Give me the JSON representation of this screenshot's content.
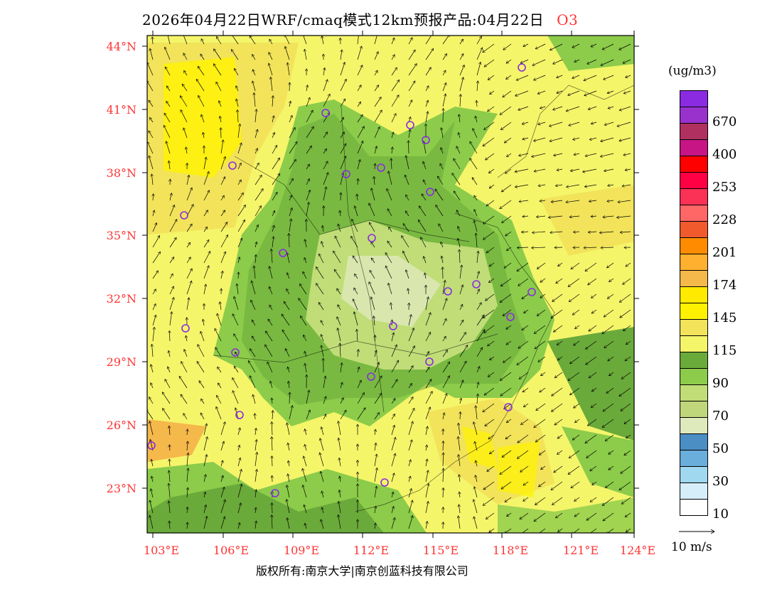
{
  "title": {
    "main": "2026年04月22日WRF/cmaq模式12km预报产品:04月22日",
    "species": "O3"
  },
  "lat_labels": [
    "44°N",
    "41°N",
    "38°N",
    "35°N",
    "32°N",
    "29°N",
    "26°N",
    "23°N"
  ],
  "lon_labels": [
    "103°E",
    "106°E",
    "109°E",
    "112°E",
    "115°E",
    "118°E",
    "121°E",
    "124°E"
  ],
  "colorbar": {
    "units": "(ug/m3)",
    "labels": [
      "670",
      "400",
      "253",
      "228",
      "201",
      "174",
      "145",
      "115",
      "90",
      "70",
      "50",
      "30",
      "10"
    ],
    "colors": [
      "#8a2be2",
      "#9932cc",
      "#b03060",
      "#c71585",
      "#ff0000",
      "#ff0044",
      "#fb3155",
      "#ff6666",
      "#f05a2d",
      "#ff8c00",
      "#ffb02e",
      "#f5b84a",
      "#ffea00",
      "#fff200",
      "#f2e35a",
      "#f5f56a",
      "#6aaa3a",
      "#8ccc4a",
      "#c0dd77",
      "#c0d67a",
      "#dfeabc",
      "#4a8ec4",
      "#6aaedc",
      "#a0d8f0",
      "#d6eefa",
      "#ffffff"
    ]
  },
  "wind_reference": "10 m/s",
  "footer": "版权所有:南京大学|南京创蓝科技有限公司"
}
